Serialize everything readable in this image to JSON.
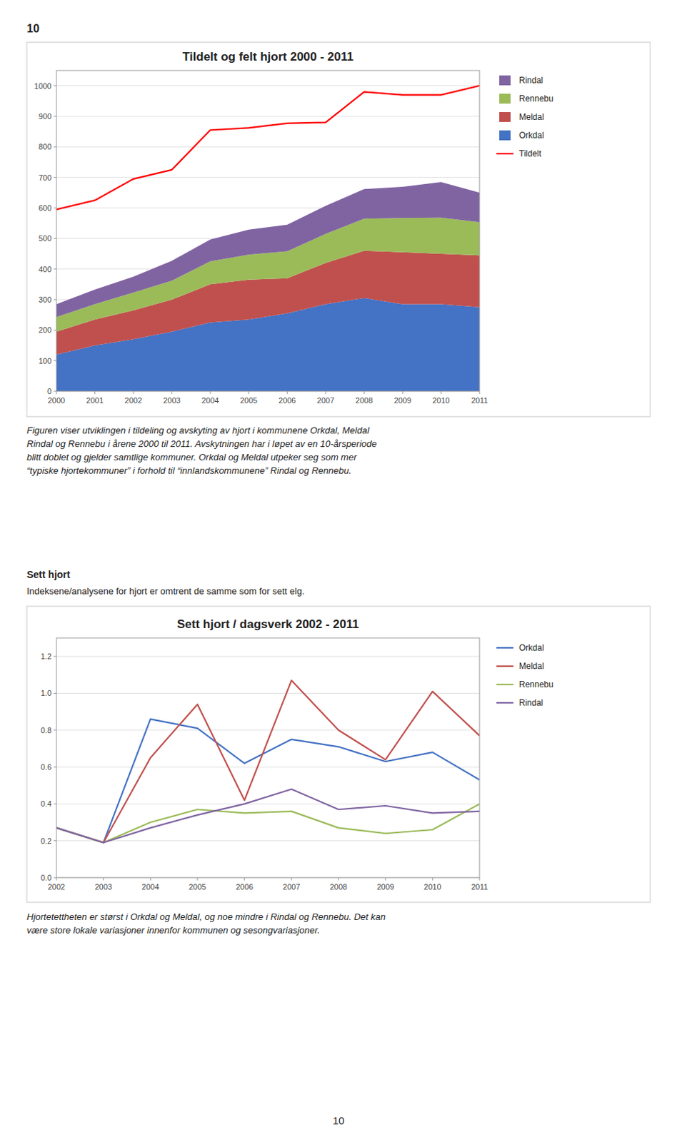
{
  "page_number_top": "10",
  "page_number_bottom": "10",
  "text1": "Figuren viser utviklingen i tildeling og avskyting av hjort i kommunene Orkdal, Meldal\nRindal og Rennebu i årene 2000 til 2011. Avskytningen har i løpet av en 10-årsperiode\nblitt doblet og gjelder samtlige kommuner. Orkdal og Meldal utpeker seg som mer\n“typiske hjortekommuner” i forhold til “innlandskommunene” Rindal og Rennebu.",
  "text2_bold": "Sett hjort",
  "text2_normal": "Indeksene/analysene for hjort er omtrent de samme som for sett elg.",
  "text3": "Hjortetettheten er størst i Orkdal og Meldal, og noe mindre i Rindal og Rennebu. Det kan\nvære store lokale variasjoner innenfor kommunen og sesongvariasjoner.",
  "chart_data": [
    {
      "type": "area",
      "title": "Tildelt og felt hjort 2000 - 2011",
      "stacked": true,
      "grid": true,
      "legend": "right",
      "x": [
        2000,
        2001,
        2002,
        2003,
        2004,
        2005,
        2006,
        2007,
        2008,
        2009,
        2010,
        2011
      ],
      "xlim": [
        2000,
        2011
      ],
      "xticks": [
        2000,
        2001,
        2002,
        2003,
        2004,
        2005,
        2006,
        2007,
        2008,
        2009,
        2010,
        2011
      ],
      "ylim": [
        0,
        1050
      ],
      "yticks": [
        0,
        100,
        200,
        300,
        400,
        500,
        600,
        700,
        800,
        900,
        1000
      ],
      "series": [
        {
          "name": "Orkdal",
          "color": "#4472C4",
          "values": [
            120,
            150,
            170,
            195,
            225,
            235,
            255,
            285,
            305,
            285,
            285,
            275
          ]
        },
        {
          "name": "Meldal",
          "color": "#C0504D",
          "values": [
            75,
            85,
            95,
            105,
            125,
            130,
            115,
            135,
            155,
            170,
            165,
            170
          ]
        },
        {
          "name": "Rennebu",
          "color": "#9BBB59",
          "values": [
            48,
            50,
            58,
            62,
            75,
            82,
            88,
            95,
            105,
            112,
            118,
            108
          ]
        },
        {
          "name": "Rindal",
          "color": "#8064A2",
          "values": [
            42,
            48,
            52,
            65,
            72,
            82,
            87,
            92,
            97,
            102,
            117,
            97
          ]
        },
        {
          "name": "Tildelt",
          "type": "line",
          "color": "#FF0000",
          "values": [
            595,
            625,
            695,
            725,
            855,
            862,
            877,
            880,
            980,
            970,
            970,
            1000
          ]
        }
      ]
    },
    {
      "type": "line",
      "title": "Sett hjort / dagsverk 2002 - 2011",
      "grid": true,
      "legend": "right",
      "x": [
        2002,
        2003,
        2004,
        2005,
        2006,
        2007,
        2008,
        2009,
        2010,
        2011
      ],
      "xlim": [
        2002,
        2011
      ],
      "xticks": [
        2002,
        2003,
        2004,
        2005,
        2006,
        2007,
        2008,
        2009,
        2010,
        2011
      ],
      "ylim": [
        0,
        1.3
      ],
      "yticks": [
        {
          "value": 0,
          "label": "0.0"
        },
        0.2,
        0.4,
        0.6,
        0.8,
        {
          "value": 1.0,
          "label": "1.0"
        },
        1.2
      ],
      "series": [
        {
          "name": "Orkdal",
          "color": "#4472C4",
          "values": [
            0.27,
            0.19,
            0.86,
            0.81,
            0.62,
            0.75,
            0.71,
            0.63,
            0.68,
            0.53
          ]
        },
        {
          "name": "Meldal",
          "color": "#C0504D",
          "values": [
            0.27,
            0.19,
            0.65,
            0.94,
            0.42,
            1.07,
            0.8,
            0.64,
            1.01,
            0.77
          ]
        },
        {
          "name": "Rennebu",
          "color": "#9BBB59",
          "values": [
            0.27,
            0.19,
            0.3,
            0.37,
            0.35,
            0.36,
            0.27,
            0.24,
            0.26,
            0.4
          ]
        },
        {
          "name": "Rindal",
          "color": "#8064A2",
          "values": [
            0.27,
            0.19,
            0.27,
            0.34,
            0.4,
            0.48,
            0.37,
            0.39,
            0.35,
            0.36
          ]
        }
      ]
    }
  ]
}
